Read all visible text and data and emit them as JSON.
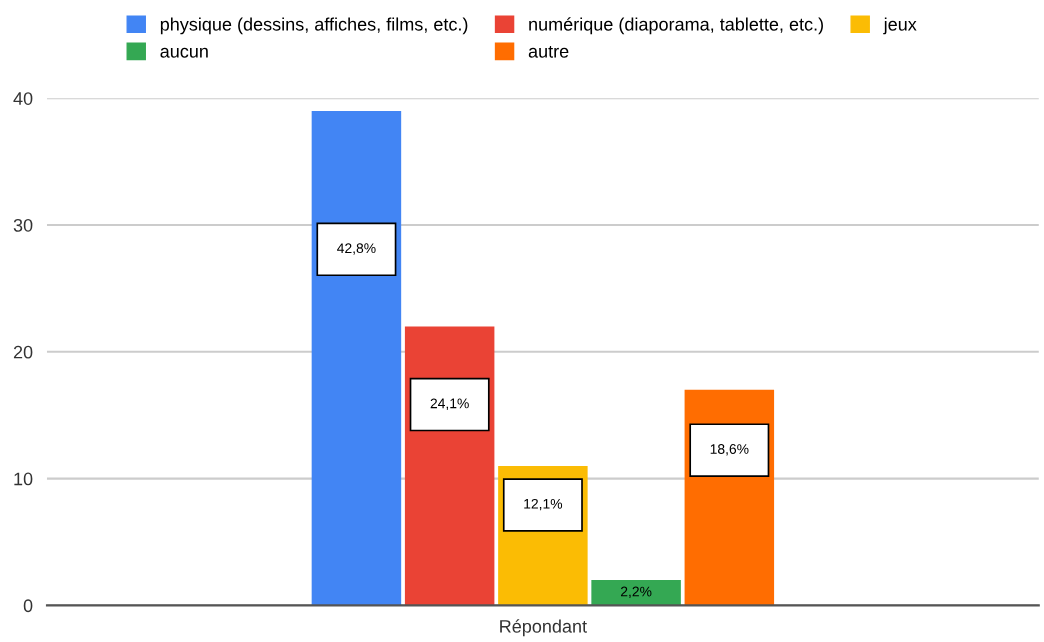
{
  "chart_data": {
    "type": "bar",
    "categories": [
      "Répondant"
    ],
    "series": [
      {
        "name": "physique (dessins, affiches, films, etc.)",
        "color": "#4285f4",
        "values": [
          39
        ]
      },
      {
        "name": "numérique (diaporama, tablette, etc.)",
        "color": "#ea4335",
        "values": [
          22
        ]
      },
      {
        "name": "jeux",
        "color": "#fbbc04",
        "values": [
          11
        ]
      },
      {
        "name": "aucun",
        "color": "#34a853",
        "values": [
          2
        ]
      },
      {
        "name": "autre",
        "color": "#ff6d01",
        "values": [
          17
        ]
      }
    ],
    "annotations": [
      "42,8%",
      "24,1%",
      "12,1%",
      "2,2%",
      "18,6%"
    ],
    "ylim": [
      0,
      40
    ],
    "yticks": [
      0,
      10,
      20,
      30,
      40
    ],
    "grid": "y",
    "legend": "top"
  }
}
